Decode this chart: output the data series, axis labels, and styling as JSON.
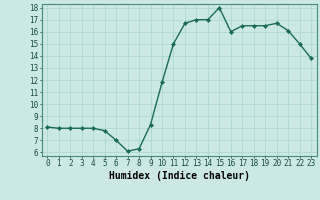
{
  "x": [
    0,
    1,
    2,
    3,
    4,
    5,
    6,
    7,
    8,
    9,
    10,
    11,
    12,
    13,
    14,
    15,
    16,
    17,
    18,
    19,
    20,
    21,
    22,
    23
  ],
  "y": [
    8.1,
    8.0,
    8.0,
    8.0,
    8.0,
    7.8,
    7.0,
    6.1,
    6.3,
    8.3,
    11.8,
    15.0,
    16.7,
    17.0,
    17.0,
    18.0,
    16.0,
    16.5,
    16.5,
    16.5,
    16.7,
    16.1,
    15.0,
    13.8
  ],
  "xlabel": "Humidex (Indice chaleur)",
  "ylim_min": 6,
  "ylim_max": 18,
  "xlim_min": -0.5,
  "xlim_max": 23.5,
  "yticks": [
    6,
    7,
    8,
    9,
    10,
    11,
    12,
    13,
    14,
    15,
    16,
    17,
    18
  ],
  "xticks": [
    0,
    1,
    2,
    3,
    4,
    5,
    6,
    7,
    8,
    9,
    10,
    11,
    12,
    13,
    14,
    15,
    16,
    17,
    18,
    19,
    20,
    21,
    22,
    23
  ],
  "line_color": "#1a6b5a",
  "marker_color": "#1a6b5a",
  "bg_color": "#cce8e4",
  "grid_color": "#b0d8d2",
  "tick_label_fontsize": 5.5,
  "xlabel_fontsize": 7
}
